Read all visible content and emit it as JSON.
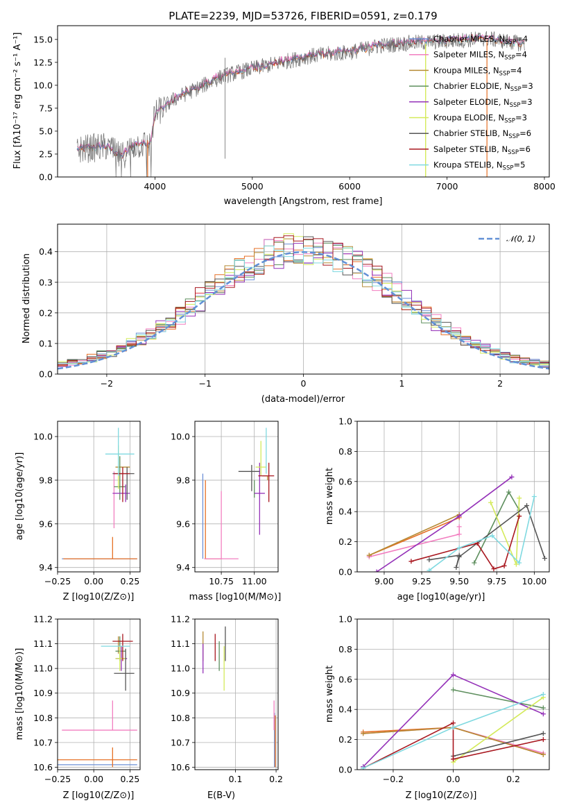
{
  "colors": [
    "#6b8fd6",
    "#e66f25",
    "#f27ec0",
    "#b58a33",
    "#5e8f5e",
    "#9431b8",
    "#d4ea5a",
    "#555555",
    "#a8161e",
    "#7fd9e0"
  ],
  "chart_data": [
    {
      "id": "spectrum",
      "type": "line",
      "title": "PLATE=2239, MJD=53726, FIBERID=0591, z=0.179",
      "xlabel": "wavelength [Angstrom, rest frame]",
      "ylabel": "Flux [fλ10⁻¹⁷ erg cm⁻² s⁻¹ A⁻¹]",
      "xlim": [
        3000,
        8050
      ],
      "ylim": [
        0,
        16.5
      ],
      "xticks": [
        4000,
        5000,
        6000,
        7000,
        8000
      ],
      "yticks": [
        0.0,
        2.5,
        5.0,
        7.5,
        10.0,
        12.5,
        15.0
      ],
      "grid": false,
      "legend_position": "top-right",
      "legend": [
        {
          "label": "Chabrier MILES, N",
          "sub": "SSP",
          "suffix": "=4"
        },
        {
          "label": "Salpeter MILES, N",
          "sub": "SSP",
          "suffix": "=4"
        },
        {
          "label": "Kroupa MILES, N",
          "sub": "SSP",
          "suffix": "=4"
        },
        {
          "label": "Chabrier ELODIE, N",
          "sub": "SSP",
          "suffix": "=3"
        },
        {
          "label": "Salpeter ELODIE, N",
          "sub": "SSP",
          "suffix": "=3"
        },
        {
          "label": "Kroupa ELODIE, N",
          "sub": "SSP",
          "suffix": "=3"
        },
        {
          "label": "Chabrier STELIB, N",
          "sub": "SSP",
          "suffix": "=6"
        },
        {
          "label": "Salpeter STELIB, N",
          "sub": "SSP",
          "suffix": "=6"
        },
        {
          "label": "Kroupa STELIB, N",
          "sub": "SSP",
          "suffix": "=5"
        }
      ],
      "continuum": [
        [
          3200,
          3.0
        ],
        [
          3500,
          3.3
        ],
        [
          3650,
          2.2
        ],
        [
          3800,
          3.5
        ],
        [
          3950,
          3.6
        ],
        [
          4000,
          6.8
        ],
        [
          4200,
          8.5
        ],
        [
          4400,
          9.5
        ],
        [
          4700,
          11.0
        ],
        [
          5000,
          11.8
        ],
        [
          5300,
          12.5
        ],
        [
          5600,
          13.2
        ],
        [
          6000,
          13.6
        ],
        [
          6300,
          14.3
        ],
        [
          6600,
          14.6
        ],
        [
          7000,
          14.8
        ],
        [
          7400,
          15.1
        ],
        [
          7800,
          14.5
        ]
      ]
    },
    {
      "id": "residuals",
      "type": "line",
      "xlabel": "(data-model)/error",
      "ylabel": "Normed distribution",
      "xlim": [
        -2.5,
        2.5
      ],
      "ylim": [
        0,
        0.49
      ],
      "xticks": [
        -2,
        -1,
        0,
        1,
        2
      ],
      "yticks": [
        0.0,
        0.1,
        0.2,
        0.3,
        0.4
      ],
      "grid": true,
      "legend_position": "top-right",
      "series": [
        {
          "name": "N(0,1)",
          "sigma": 1.0,
          "style": "dashed"
        }
      ]
    },
    {
      "id": "age_vs_Z",
      "type": "scatter",
      "xlabel": "Z [log10(Z/Z⊙)]",
      "ylabel": "age  [log10(age/yr)]",
      "xlim": [
        -0.25,
        0.32
      ],
      "ylim": [
        9.38,
        10.07
      ],
      "xticks": [
        -0.25,
        0.0,
        0.25
      ],
      "yticks": [
        9.4,
        9.6,
        9.8,
        10.0
      ],
      "grid": true,
      "points": [
        {
          "x": 0.12,
          "y": 9.44,
          "xerr": [
            0.34,
            0.18
          ],
          "yerr": [
            0.0,
            0.0
          ]
        },
        {
          "x": 0.13,
          "y": 9.44,
          "xerr": [
            0.34,
            0.17
          ],
          "yerr": [
            0.0,
            0.1
          ]
        },
        {
          "x": 0.14,
          "y": 9.78,
          "xerr": [
            0.0,
            0.0
          ],
          "yerr": [
            0.2,
            0.06
          ]
        },
        {
          "x": 0.2,
          "y": 9.86,
          "xerr": [
            0.05,
            0.05
          ],
          "yerr": [
            0.0,
            0.0
          ]
        },
        {
          "x": 0.18,
          "y": 9.77,
          "xerr": [
            0.04,
            0.04
          ],
          "yerr": [
            0.06,
            0.14
          ]
        },
        {
          "x": 0.22,
          "y": 9.74,
          "xerr": [
            0.09,
            0.03
          ],
          "yerr": [
            0.04,
            0.04
          ]
        },
        {
          "x": 0.17,
          "y": 9.9,
          "xerr": [
            0.0,
            0.0
          ],
          "yerr": [
            0.14,
            0.06
          ]
        },
        {
          "x": 0.23,
          "y": 9.83,
          "xerr": [
            0.1,
            0.05
          ],
          "yerr": [
            0.12,
            0.03
          ]
        },
        {
          "x": 0.2,
          "y": 9.83,
          "xerr": [
            0.06,
            0.05
          ],
          "yerr": [
            0.13,
            0.03
          ]
        },
        {
          "x": 0.17,
          "y": 9.92,
          "xerr": [
            0.09,
            0.11
          ],
          "yerr": [
            0.1,
            0.12
          ]
        }
      ]
    },
    {
      "id": "age_vs_mass",
      "type": "scatter",
      "xlabel": "mass [log10(M/M⊙)]",
      "ylabel": "",
      "xlim": [
        10.55,
        11.18
      ],
      "ylim": [
        9.38,
        10.07
      ],
      "xticks": [
        10.75,
        11.0
      ],
      "yticks": [
        9.4,
        9.6,
        9.8,
        10.0
      ],
      "grid": true,
      "points": [
        {
          "x": 10.61,
          "y": 9.8,
          "xerr": [
            0.0,
            0.0
          ],
          "yerr": [
            0.36,
            0.03
          ]
        },
        {
          "x": 10.63,
          "y": 9.44,
          "xerr": [
            0.0,
            0.12
          ],
          "yerr": [
            0.0,
            0.36
          ]
        },
        {
          "x": 10.75,
          "y": 9.44,
          "xerr": [
            0.13,
            0.13
          ],
          "yerr": [
            0.0,
            0.31
          ]
        },
        {
          "x": 11.1,
          "y": 9.82,
          "xerr": [
            0.04,
            0.0
          ],
          "yerr": [
            0.02,
            0.0
          ]
        },
        {
          "x": 11.0,
          "y": 9.8,
          "xerr": [
            0.0,
            0.0
          ],
          "yerr": [
            0.08,
            0.0
          ]
        },
        {
          "x": 11.04,
          "y": 9.74,
          "xerr": [
            0.04,
            0.04
          ],
          "yerr": [
            0.19,
            0.14
          ]
        },
        {
          "x": 11.05,
          "y": 9.86,
          "xerr": [
            0.04,
            0.04
          ],
          "yerr": [
            0.04,
            0.12
          ]
        },
        {
          "x": 10.98,
          "y": 9.84,
          "xerr": [
            0.1,
            0.06
          ],
          "yerr": [
            0.09,
            0.03
          ]
        },
        {
          "x": 11.11,
          "y": 9.82,
          "xerr": [
            0.08,
            0.04
          ],
          "yerr": [
            0.12,
            0.06
          ]
        },
        {
          "x": 11.09,
          "y": 9.88,
          "xerr": [
            0.0,
            0.0
          ],
          "yerr": [
            0.05,
            0.16
          ]
        }
      ]
    },
    {
      "id": "weight_vs_age",
      "type": "line",
      "xlabel": "age  [log10(age/yr)]",
      "ylabel": "mass weight",
      "xlim": [
        8.82,
        10.1
      ],
      "ylim": [
        0,
        1
      ],
      "xticks": [
        9.0,
        9.25,
        9.5,
        9.75,
        10.0
      ],
      "yticks": [
        0.0,
        0.2,
        0.4,
        0.6,
        0.8,
        1.0
      ],
      "grid": true,
      "series": [
        {
          "points": [
            [
              8.9,
              0.11
            ],
            [
              9.5,
              0.36
            ]
          ]
        },
        {
          "points": [
            [
              8.9,
              0.1
            ],
            [
              9.5,
              0.25
            ],
            [
              9.5,
              0.3
            ]
          ]
        },
        {
          "points": [
            [
              8.9,
              0.11
            ],
            [
              9.5,
              0.38
            ]
          ]
        },
        {
          "points": [
            [
              9.6,
              0.06
            ],
            [
              9.83,
              0.53
            ],
            [
              9.9,
              0.41
            ]
          ]
        },
        {
          "points": [
            [
              8.95,
              0.0
            ],
            [
              9.5,
              0.37
            ],
            [
              9.85,
              0.63
            ]
          ]
        },
        {
          "points": [
            [
              9.71,
              0.46
            ],
            [
              9.88,
              0.05
            ],
            [
              9.9,
              0.49
            ]
          ]
        },
        {
          "points": [
            [
              9.3,
              0.08
            ],
            [
              9.5,
              0.11
            ],
            [
              9.48,
              0.03
            ],
            [
              9.5,
              0.1
            ],
            [
              9.95,
              0.44
            ],
            [
              10.07,
              0.09
            ]
          ]
        },
        {
          "points": [
            [
              9.18,
              0.07
            ],
            [
              9.62,
              0.19
            ],
            [
              9.73,
              0.02
            ],
            [
              9.8,
              0.04
            ],
            [
              9.9,
              0.37
            ]
          ]
        },
        {
          "points": [
            [
              9.3,
              0.01
            ],
            [
              9.5,
              0.16
            ],
            [
              9.72,
              0.24
            ],
            [
              9.9,
              0.06
            ],
            [
              10.0,
              0.5
            ]
          ]
        }
      ]
    },
    {
      "id": "mass_vs_Z",
      "type": "scatter",
      "xlabel": "Z [log10(Z/Z⊙)]",
      "ylabel": "mass [log10(M/M⊙)]",
      "xlim": [
        -0.25,
        0.32
      ],
      "ylim": [
        10.59,
        11.2
      ],
      "xticks": [
        -0.25,
        0.0,
        0.25
      ],
      "yticks": [
        10.6,
        10.7,
        10.8,
        10.9,
        11.0,
        11.1,
        11.2
      ],
      "grid": true,
      "points": [
        {
          "x": 0.0,
          "y": 10.61,
          "xerr": [
            0.25,
            0.3
          ],
          "yerr": [
            0.0,
            0.0
          ]
        },
        {
          "x": 0.13,
          "y": 10.63,
          "xerr": [
            0.38,
            0.17
          ],
          "yerr": [
            0.03,
            0.05
          ]
        },
        {
          "x": 0.13,
          "y": 10.75,
          "xerr": [
            0.35,
            0.17
          ],
          "yerr": [
            0.0,
            0.12
          ]
        },
        {
          "x": 0.17,
          "y": 11.09,
          "xerr": [
            0.0,
            0.0
          ],
          "yerr": [
            0.03,
            0.04
          ]
        },
        {
          "x": 0.18,
          "y": 11.07,
          "xerr": [
            0.03,
            0.04
          ],
          "yerr": [
            0.04,
            0.06
          ]
        },
        {
          "x": 0.19,
          "y": 11.04,
          "xerr": [
            0.04,
            0.04
          ],
          "yerr": [
            0.05,
            0.05
          ]
        },
        {
          "x": 0.18,
          "y": 11.04,
          "xerr": [
            0.03,
            0.04
          ],
          "yerr": [
            0.05,
            0.05
          ]
        },
        {
          "x": 0.22,
          "y": 10.98,
          "xerr": [
            0.08,
            0.06
          ],
          "yerr": [
            0.07,
            0.1
          ]
        },
        {
          "x": 0.2,
          "y": 11.11,
          "xerr": [
            0.07,
            0.07
          ],
          "yerr": [
            0.08,
            0.03
          ]
        },
        {
          "x": 0.15,
          "y": 11.09,
          "xerr": [
            0.1,
            0.1
          ],
          "yerr": [
            0.0,
            0.0
          ]
        }
      ]
    },
    {
      "id": "mass_vs_EBV",
      "type": "scatter",
      "xlabel": "E(B-V)",
      "ylabel": "",
      "xlim": [
        0.0,
        0.205
      ],
      "ylim": [
        10.59,
        11.2
      ],
      "xticks": [
        0.1,
        0.2
      ],
      "yticks": [
        10.6,
        10.7,
        10.8,
        10.9,
        11.0,
        11.1,
        11.2
      ],
      "grid": true,
      "points": [
        {
          "x": 0.196,
          "y": 10.62,
          "xerr": [
            0.0,
            0.0
          ],
          "yerr": [
            0.02,
            0.2
          ]
        },
        {
          "x": 0.198,
          "y": 10.62,
          "xerr": [
            0.0,
            0.0
          ],
          "yerr": [
            0.02,
            0.19
          ]
        },
        {
          "x": 0.195,
          "y": 10.75,
          "xerr": [
            0.0,
            0.0
          ],
          "yerr": [
            0.0,
            0.12
          ]
        },
        {
          "x": 0.02,
          "y": 11.08,
          "xerr": [
            0.0,
            0.0
          ],
          "yerr": [
            0.05,
            0.07
          ]
        },
        {
          "x": 0.06,
          "y": 11.04,
          "xerr": [
            0.0,
            0.0
          ],
          "yerr": [
            0.05,
            0.07
          ]
        },
        {
          "x": 0.02,
          "y": 11.04,
          "xerr": [
            0.0,
            0.0
          ],
          "yerr": [
            0.06,
            0.06
          ]
        },
        {
          "x": 0.072,
          "y": 10.99,
          "xerr": [
            0.0,
            0.0
          ],
          "yerr": [
            0.08,
            0.1
          ]
        },
        {
          "x": 0.075,
          "y": 11.1,
          "xerr": [
            0.0,
            0.0
          ],
          "yerr": [
            0.07,
            0.07
          ]
        },
        {
          "x": 0.05,
          "y": 11.09,
          "xerr": [
            0.0,
            0.0
          ],
          "yerr": [
            0.06,
            0.05
          ]
        }
      ]
    },
    {
      "id": "weight_vs_Z",
      "type": "line",
      "xlabel": "Z [log10(Z/Z⊙)]",
      "ylabel": "mass weight",
      "xlim": [
        -0.32,
        0.32
      ],
      "ylim": [
        0,
        1
      ],
      "xticks": [
        -0.2,
        0.0,
        0.2
      ],
      "yticks": [
        0.0,
        0.2,
        0.4,
        0.6,
        0.8,
        1.0
      ],
      "grid": true,
      "series": [
        {
          "points": [
            [
              -0.3,
              0.25
            ],
            [
              0.0,
              0.28
            ],
            [
              0.3,
              0.1
            ]
          ]
        },
        {
          "points": [
            [
              -0.3,
              0.24
            ],
            [
              0.0,
              0.28
            ],
            [
              0.3,
              0.11
            ]
          ]
        },
        {
          "points": [
            [
              -0.3,
              0.24
            ],
            [
              0.0,
              0.28
            ],
            [
              0.3,
              0.1
            ]
          ]
        },
        {
          "points": [
            [
              0.0,
              0.53
            ],
            [
              0.3,
              0.41
            ]
          ]
        },
        {
          "points": [
            [
              -0.3,
              0.02
            ],
            [
              0.0,
              0.63
            ],
            [
              0.3,
              0.37
            ]
          ]
        },
        {
          "points": [
            [
              0.0,
              0.05
            ],
            [
              0.3,
              0.48
            ]
          ]
        },
        {
          "points": [
            [
              0.0,
              0.09
            ],
            [
              0.3,
              0.24
            ]
          ]
        },
        {
          "points": [
            [
              -0.3,
              0.01
            ],
            [
              0.0,
              0.31
            ],
            [
              0.0,
              0.07
            ],
            [
              0.3,
              0.2
            ]
          ]
        },
        {
          "points": [
            [
              -0.3,
              0.01
            ],
            [
              0.0,
              0.28
            ],
            [
              0.3,
              0.5
            ]
          ]
        }
      ]
    }
  ]
}
